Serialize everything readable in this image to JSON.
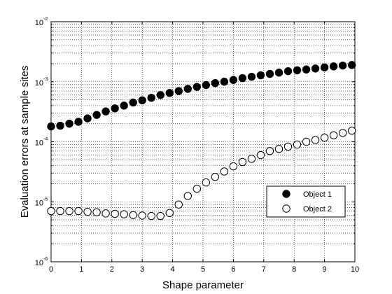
{
  "chart_data": {
    "type": "scatter",
    "xlabel": "Shape parameter",
    "ylabel": "Evaluation errors at sample sites",
    "xlim": [
      0,
      10
    ],
    "ylim": [
      1e-06,
      0.01
    ],
    "yscale": "log",
    "grid": true,
    "legend_position": "lower-right",
    "x_ticks": [
      "0",
      "1",
      "2",
      "3",
      "4",
      "5",
      "6",
      "7",
      "8",
      "9",
      "10"
    ],
    "y_ticks": [
      {
        "base": "10",
        "exp": "-6"
      },
      {
        "base": "10",
        "exp": "-5"
      },
      {
        "base": "10",
        "exp": "-4"
      },
      {
        "base": "10",
        "exp": "-3"
      },
      {
        "base": "10",
        "exp": "-2"
      }
    ],
    "x": [
      0,
      0.3,
      0.6,
      0.9,
      1.2,
      1.5,
      1.8,
      2.1,
      2.4,
      2.7,
      3.0,
      3.3,
      3.6,
      3.9,
      4.2,
      4.5,
      4.8,
      5.1,
      5.4,
      5.7,
      6.0,
      6.3,
      6.6,
      6.9,
      7.2,
      7.5,
      7.8,
      8.1,
      8.4,
      8.7,
      9.0,
      9.3,
      9.6,
      9.9
    ],
    "series": [
      {
        "name": "Object 1",
        "marker": "filled-circle",
        "color": "#000000",
        "values": [
          0.00018,
          0.000185,
          0.0002,
          0.000215,
          0.000245,
          0.00028,
          0.00032,
          0.00036,
          0.0004,
          0.00045,
          0.00049,
          0.00054,
          0.0006,
          0.00065,
          0.0007,
          0.00076,
          0.00082,
          0.00088,
          0.00095,
          0.001,
          0.00107,
          0.00115,
          0.00121,
          0.00128,
          0.00135,
          0.00142,
          0.0015,
          0.00155,
          0.0016,
          0.00166,
          0.00173,
          0.0018,
          0.00186,
          0.0019
        ]
      },
      {
        "name": "Object 2",
        "marker": "open-circle",
        "color": "#000000",
        "values": [
          7e-06,
          7e-06,
          7e-06,
          7e-06,
          6.8e-06,
          6.7e-06,
          6.4e-06,
          6.3e-06,
          6.2e-06,
          6e-06,
          5.9e-06,
          5.8e-06,
          5.8e-06,
          6.5e-06,
          9e-06,
          1.25e-05,
          1.65e-05,
          2.1e-05,
          2.6e-05,
          3.2e-05,
          3.9e-05,
          4.6e-05,
          5.2e-05,
          6e-05,
          7e-05,
          7.6e-05,
          8.3e-05,
          9e-05,
          0.0001,
          0.000107,
          0.000117,
          0.000128,
          0.00014,
          0.000153
        ]
      }
    ]
  }
}
